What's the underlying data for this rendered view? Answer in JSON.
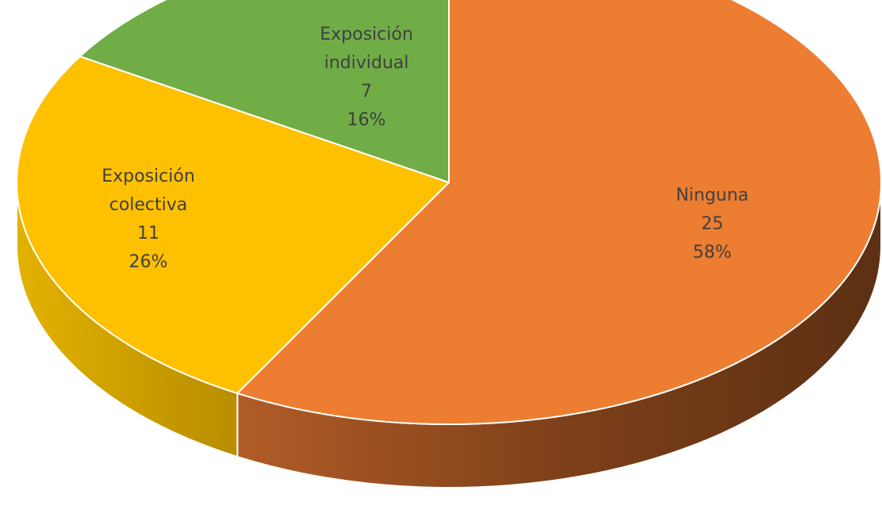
{
  "chart_data": {
    "type": "pie",
    "style": "3d",
    "title": "",
    "total": 43,
    "slices": [
      {
        "name": "Ninguna",
        "label_lines": [
          "Ninguna"
        ],
        "value": 25,
        "value_label": "25",
        "percent": 58,
        "percent_label": "58%",
        "color": "#ED7D31",
        "side_color": "#8A461A"
      },
      {
        "name": "Exposición colectiva",
        "label_lines": [
          "Exposición",
          "colectiva"
        ],
        "value": 11,
        "value_label": "11",
        "percent": 26,
        "percent_label": "26%",
        "color": "#FFC000",
        "side_color": "#C99A00"
      },
      {
        "name": "Exposición individual",
        "label_lines": [
          "Exposición",
          "individual"
        ],
        "value": 7,
        "value_label": "7",
        "percent": 16,
        "percent_label": "16%",
        "color": "#70AD47",
        "side_color": "#4E7A30"
      }
    ],
    "legend": "none"
  }
}
